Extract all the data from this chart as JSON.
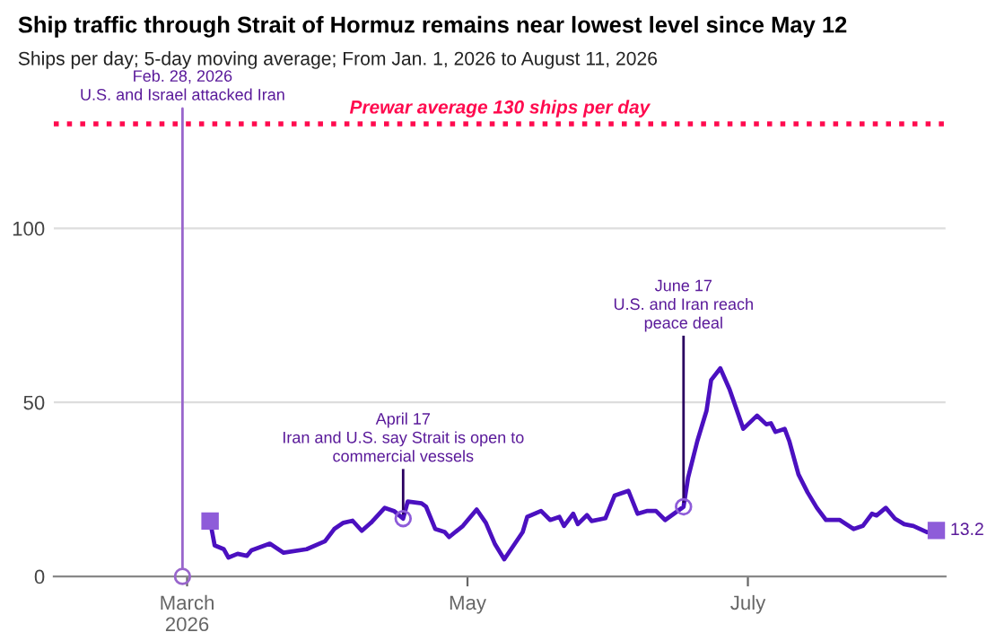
{
  "chart_data": {
    "type": "line",
    "title": "Ship traffic through Strait of Hormuz remains near lowest level since May 12",
    "subtitle": "Ships per day; 5-day moving average; From Jan. 1, 2026 to August 11, 2026",
    "x": [
      "2026-03-06",
      "2026-03-07",
      "2026-03-09",
      "2026-03-10",
      "2026-03-12",
      "2026-03-14",
      "2026-03-15",
      "2026-03-19",
      "2026-03-22",
      "2026-03-27",
      "2026-03-31",
      "2026-04-02",
      "2026-04-04",
      "2026-04-06",
      "2026-04-08",
      "2026-04-10",
      "2026-04-13",
      "2026-04-15",
      "2026-04-17",
      "2026-04-18",
      "2026-04-21",
      "2026-04-22",
      "2026-04-24",
      "2026-04-26",
      "2026-04-27",
      "2026-04-30",
      "2026-05-03",
      "2026-05-05",
      "2026-05-07",
      "2026-05-09",
      "2026-05-13",
      "2026-05-14",
      "2026-05-17",
      "2026-05-19",
      "2026-05-21",
      "2026-05-22",
      "2026-05-24",
      "2026-05-25",
      "2026-05-27",
      "2026-05-28",
      "2026-05-31",
      "2026-06-02",
      "2026-06-05",
      "2026-06-07",
      "2026-06-09",
      "2026-06-11",
      "2026-06-13",
      "2026-06-17",
      "2026-06-18",
      "2026-06-20",
      "2026-06-22",
      "2026-06-23",
      "2026-06-25",
      "2026-06-27",
      "2026-06-30",
      "2026-07-03",
      "2026-07-05",
      "2026-07-06",
      "2026-07-07",
      "2026-07-09",
      "2026-07-10",
      "2026-07-12",
      "2026-07-14",
      "2026-07-16",
      "2026-07-18",
      "2026-07-21",
      "2026-07-24",
      "2026-07-26",
      "2026-07-28",
      "2026-07-29",
      "2026-07-31",
      "2026-08-02",
      "2026-08-04",
      "2026-08-06",
      "2026-08-09",
      "2026-08-11"
    ],
    "series": [
      {
        "color": "#4b10c0",
        "values": [
          15.9,
          8.9,
          7.8,
          5.4,
          6.5,
          5.9,
          7.5,
          9.4,
          6.8,
          7.8,
          10.1,
          13.6,
          15.4,
          16,
          13.1,
          15.4,
          19.7,
          18.8,
          16.6,
          21.5,
          21,
          20,
          13.6,
          12.8,
          11.3,
          14.5,
          19.2,
          15.4,
          9.2,
          4.9,
          12.7,
          17.1,
          18.8,
          16.2,
          17.1,
          14.5,
          18,
          15,
          17.6,
          15.9,
          16.7,
          23.2,
          24.6,
          18,
          18.8,
          18.8,
          16.2,
          20,
          28.4,
          38.9,
          47.6,
          56.4,
          59.8,
          53.8,
          42.4,
          46.2,
          43.7,
          44,
          41.5,
          42.4,
          38.9,
          29.3,
          24.1,
          19.7,
          16.2,
          16.2,
          13.6,
          14.5,
          18,
          17.5,
          19.7,
          16.6,
          15,
          14.5,
          12.7,
          13.2
        ]
      }
    ],
    "xlim": [
      "2026-01-31",
      "2026-08-13"
    ],
    "xticks": [
      {
        "value": "2026-03-01",
        "label": "March\n2026"
      },
      {
        "value": "2026-05-01",
        "label": "May"
      },
      {
        "value": "2026-07-01",
        "label": "July"
      }
    ],
    "ylim": [
      0,
      130
    ],
    "yticks": [
      0,
      50,
      100
    ],
    "grid": "y",
    "ref_lines": [
      {
        "axis": "y",
        "value": 130,
        "label": "Prewar average 130 ships per day",
        "color": "#ff0a4e",
        "line_style": "dotted"
      }
    ],
    "annotations": [
      {
        "text": "Feb. 28, 2026\nU.S. and Israel attacked Iran",
        "x": "2026-02-28",
        "y": 0
      },
      {
        "text": "April 17\nIran and U.S. say Strait is open to\ncommercial vessels",
        "x": "2026-04-17",
        "y": 16.6
      },
      {
        "text": "June 17\nU.S. and Iran reach\npeace deal",
        "x": "2026-06-17",
        "y": 20
      },
      {
        "text": "13.2",
        "x": "2026-08-11",
        "y": 13.2
      }
    ]
  }
}
